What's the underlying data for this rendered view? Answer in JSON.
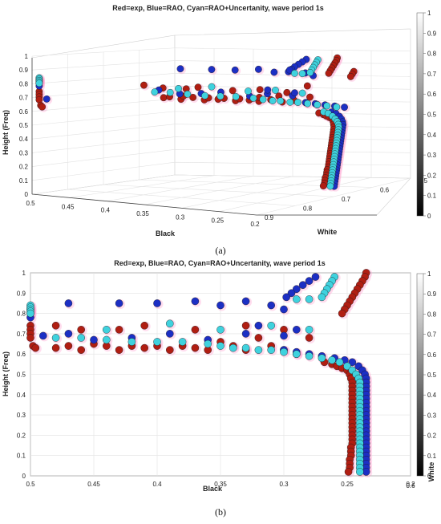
{
  "colors": {
    "red": "#b01e12",
    "blue": "#1c2fc4",
    "cyan": "#3fd2de",
    "halo": "#ff9fce"
  },
  "chart_data": [
    {
      "type": "scatter",
      "panel_caption": "(a)",
      "title": "Red=exp, Blue=RAO, Cyan=RAO+Uncertanity, wave period 1s",
      "xlabel": "Black",
      "ylabel": "White",
      "zlabel": "Height (Freq)",
      "x_ticks": [
        "0.5",
        "0.45",
        "0.4",
        "0.35",
        "0.3",
        "0.25",
        "0.2"
      ],
      "y_ticks": [
        "0.9",
        "0.8",
        "0.7",
        "0.6",
        "0.5"
      ],
      "z_ticks": [
        "0",
        "0.1",
        "0.2",
        "0.3",
        "0.4",
        "0.5",
        "0.6",
        "0.7",
        "0.8",
        "0.9",
        "1"
      ],
      "colorbar_ticks": [
        "0",
        "0.1",
        "0.2",
        "0.3",
        "0.4",
        "0.5",
        "0.6",
        "0.7",
        "0.8",
        "0.9",
        "1"
      ],
      "xlim": [
        0.2,
        0.5
      ],
      "ylim": [
        0.5,
        0.9
      ],
      "zlim": [
        0,
        1
      ],
      "grid": true
    },
    {
      "type": "scatter",
      "panel_caption": "(b)",
      "title": "Red=exp, Blue=RAO, Cyan=RAO+Uncertanity, wave period 1s",
      "xlabel": "Black",
      "ylabel": "Height (Freq)",
      "colorbar_label": "White",
      "corner_label": "0.6",
      "x_ticks": [
        "0.5",
        "0.45",
        "0.4",
        "0.35",
        "0.3",
        "0.25",
        "0.2"
      ],
      "y_ticks": [
        "0",
        "0.1",
        "0.2",
        "0.3",
        "0.4",
        "0.5",
        "0.6",
        "0.7",
        "0.8",
        "0.9",
        "1"
      ],
      "colorbar_ticks": [
        "0",
        "0.1",
        "0.2",
        "0.3",
        "0.4",
        "0.5",
        "0.6",
        "0.7",
        "0.8",
        "0.9",
        "1"
      ],
      "xlim": [
        0.2,
        0.5
      ],
      "ylim": [
        0,
        1
      ],
      "grid": true,
      "series": [
        {
          "name": "Red=exp",
          "points": [
            [
              0.235,
              1.0
            ],
            [
              0.236,
              0.98
            ],
            [
              0.238,
              0.96
            ],
            [
              0.24,
              0.94
            ],
            [
              0.242,
              0.92
            ],
            [
              0.244,
              0.9
            ],
            [
              0.246,
              0.88
            ],
            [
              0.248,
              0.86
            ],
            [
              0.25,
              0.84
            ],
            [
              0.252,
              0.82
            ],
            [
              0.254,
              0.8
            ],
            [
              0.5,
              0.74
            ],
            [
              0.5,
              0.72
            ],
            [
              0.5,
              0.7
            ],
            [
              0.5,
              0.68
            ],
            [
              0.498,
              0.64
            ],
            [
              0.496,
              0.63
            ],
            [
              0.48,
              0.63
            ],
            [
              0.47,
              0.64
            ],
            [
              0.46,
              0.62
            ],
            [
              0.45,
              0.65
            ],
            [
              0.44,
              0.64
            ],
            [
              0.43,
              0.62
            ],
            [
              0.42,
              0.64
            ],
            [
              0.41,
              0.63
            ],
            [
              0.4,
              0.64
            ],
            [
              0.39,
              0.62
            ],
            [
              0.38,
              0.64
            ],
            [
              0.37,
              0.63
            ],
            [
              0.36,
              0.62
            ],
            [
              0.35,
              0.66
            ],
            [
              0.34,
              0.64
            ],
            [
              0.33,
              0.62
            ],
            [
              0.32,
              0.68
            ],
            [
              0.31,
              0.64
            ],
            [
              0.3,
              0.62
            ],
            [
              0.29,
              0.6
            ],
            [
              0.48,
              0.74
            ],
            [
              0.46,
              0.72
            ],
            [
              0.43,
              0.72
            ],
            [
              0.41,
              0.74
            ],
            [
              0.37,
              0.72
            ],
            [
              0.33,
              0.74
            ],
            [
              0.3,
              0.72
            ],
            [
              0.28,
              0.68
            ],
            [
              0.268,
              0.56
            ],
            [
              0.262,
              0.55
            ],
            [
              0.258,
              0.54
            ],
            [
              0.254,
              0.53
            ],
            [
              0.25,
              0.52
            ],
            [
              0.248,
              0.5
            ],
            [
              0.247,
              0.48
            ],
            [
              0.246,
              0.46
            ],
            [
              0.246,
              0.44
            ],
            [
              0.246,
              0.42
            ],
            [
              0.246,
              0.4
            ],
            [
              0.246,
              0.38
            ],
            [
              0.246,
              0.36
            ],
            [
              0.246,
              0.34
            ],
            [
              0.246,
              0.32
            ],
            [
              0.246,
              0.3
            ],
            [
              0.246,
              0.28
            ],
            [
              0.246,
              0.26
            ],
            [
              0.246,
              0.24
            ],
            [
              0.246,
              0.22
            ],
            [
              0.246,
              0.2
            ],
            [
              0.246,
              0.18
            ],
            [
              0.246,
              0.16
            ],
            [
              0.247,
              0.14
            ],
            [
              0.247,
              0.12
            ],
            [
              0.247,
              0.1
            ],
            [
              0.248,
              0.08
            ],
            [
              0.248,
              0.06
            ],
            [
              0.248,
              0.04
            ],
            [
              0.249,
              0.02
            ]
          ]
        },
        {
          "name": "Blue=RAO",
          "points": [
            [
              0.275,
              0.98
            ],
            [
              0.28,
              0.96
            ],
            [
              0.285,
              0.94
            ],
            [
              0.29,
              0.92
            ],
            [
              0.294,
              0.9
            ],
            [
              0.298,
              0.88
            ],
            [
              0.47,
              0.85
            ],
            [
              0.43,
              0.85
            ],
            [
              0.4,
              0.85
            ],
            [
              0.37,
              0.86
            ],
            [
              0.35,
              0.84
            ],
            [
              0.33,
              0.86
            ],
            [
              0.31,
              0.84
            ],
            [
              0.3,
              0.82
            ],
            [
              0.5,
              0.82
            ],
            [
              0.5,
              0.8
            ],
            [
              0.5,
              0.78
            ],
            [
              0.49,
              0.69
            ],
            [
              0.47,
              0.7
            ],
            [
              0.45,
              0.67
            ],
            [
              0.42,
              0.68
            ],
            [
              0.39,
              0.7
            ],
            [
              0.36,
              0.67
            ],
            [
              0.33,
              0.7
            ],
            [
              0.32,
              0.74
            ],
            [
              0.3,
              0.69
            ],
            [
              0.29,
              0.72
            ],
            [
              0.3,
              0.62
            ],
            [
              0.29,
              0.61
            ],
            [
              0.28,
              0.6
            ],
            [
              0.27,
              0.59
            ],
            [
              0.26,
              0.58
            ],
            [
              0.252,
              0.57
            ],
            [
              0.246,
              0.56
            ],
            [
              0.241,
              0.54
            ],
            [
              0.238,
              0.52
            ],
            [
              0.236,
              0.5
            ],
            [
              0.235,
              0.48
            ],
            [
              0.235,
              0.46
            ],
            [
              0.235,
              0.44
            ],
            [
              0.235,
              0.42
            ],
            [
              0.235,
              0.4
            ],
            [
              0.235,
              0.38
            ],
            [
              0.235,
              0.36
            ],
            [
              0.235,
              0.34
            ],
            [
              0.235,
              0.32
            ],
            [
              0.235,
              0.3
            ],
            [
              0.235,
              0.28
            ],
            [
              0.235,
              0.26
            ],
            [
              0.235,
              0.24
            ],
            [
              0.235,
              0.22
            ],
            [
              0.235,
              0.2
            ],
            [
              0.235,
              0.18
            ],
            [
              0.235,
              0.16
            ],
            [
              0.235,
              0.14
            ],
            [
              0.235,
              0.12
            ],
            [
              0.235,
              0.1
            ],
            [
              0.235,
              0.08
            ],
            [
              0.235,
              0.06
            ],
            [
              0.235,
              0.04
            ],
            [
              0.235,
              0.02
            ]
          ]
        },
        {
          "name": "Cyan=RAO+Uncertanity",
          "points": [
            [
              0.26,
              0.98
            ],
            [
              0.262,
              0.96
            ],
            [
              0.264,
              0.94
            ],
            [
              0.266,
              0.92
            ],
            [
              0.268,
              0.9
            ],
            [
              0.27,
              0.88
            ],
            [
              0.28,
              0.87
            ],
            [
              0.29,
              0.87
            ],
            [
              0.5,
              0.84
            ],
            [
              0.5,
              0.83
            ],
            [
              0.5,
              0.82
            ],
            [
              0.5,
              0.81
            ],
            [
              0.5,
              0.8
            ],
            [
              0.48,
              0.68
            ],
            [
              0.46,
              0.68
            ],
            [
              0.44,
              0.67
            ],
            [
              0.42,
              0.66
            ],
            [
              0.4,
              0.66
            ],
            [
              0.38,
              0.66
            ],
            [
              0.36,
              0.65
            ],
            [
              0.35,
              0.64
            ],
            [
              0.34,
              0.63
            ],
            [
              0.33,
              0.63
            ],
            [
              0.32,
              0.62
            ],
            [
              0.44,
              0.72
            ],
            [
              0.39,
              0.75
            ],
            [
              0.35,
              0.72
            ],
            [
              0.31,
              0.74
            ],
            [
              0.28,
              0.72
            ],
            [
              0.31,
              0.62
            ],
            [
              0.3,
              0.61
            ],
            [
              0.29,
              0.6
            ],
            [
              0.28,
              0.59
            ],
            [
              0.27,
              0.58
            ],
            [
              0.262,
              0.57
            ],
            [
              0.256,
              0.56
            ],
            [
              0.25,
              0.54
            ],
            [
              0.246,
              0.52
            ],
            [
              0.243,
              0.5
            ],
            [
              0.241,
              0.48
            ],
            [
              0.24,
              0.46
            ],
            [
              0.24,
              0.44
            ],
            [
              0.24,
              0.42
            ],
            [
              0.24,
              0.4
            ],
            [
              0.24,
              0.38
            ],
            [
              0.24,
              0.36
            ],
            [
              0.24,
              0.34
            ],
            [
              0.24,
              0.32
            ],
            [
              0.24,
              0.3
            ],
            [
              0.24,
              0.28
            ],
            [
              0.24,
              0.26
            ],
            [
              0.24,
              0.24
            ],
            [
              0.24,
              0.22
            ],
            [
              0.24,
              0.2
            ],
            [
              0.24,
              0.18
            ],
            [
              0.24,
              0.16
            ],
            [
              0.24,
              0.14
            ],
            [
              0.24,
              0.12
            ],
            [
              0.24,
              0.1
            ],
            [
              0.24,
              0.08
            ],
            [
              0.24,
              0.06
            ],
            [
              0.24,
              0.04
            ],
            [
              0.24,
              0.02
            ]
          ]
        }
      ]
    }
  ]
}
